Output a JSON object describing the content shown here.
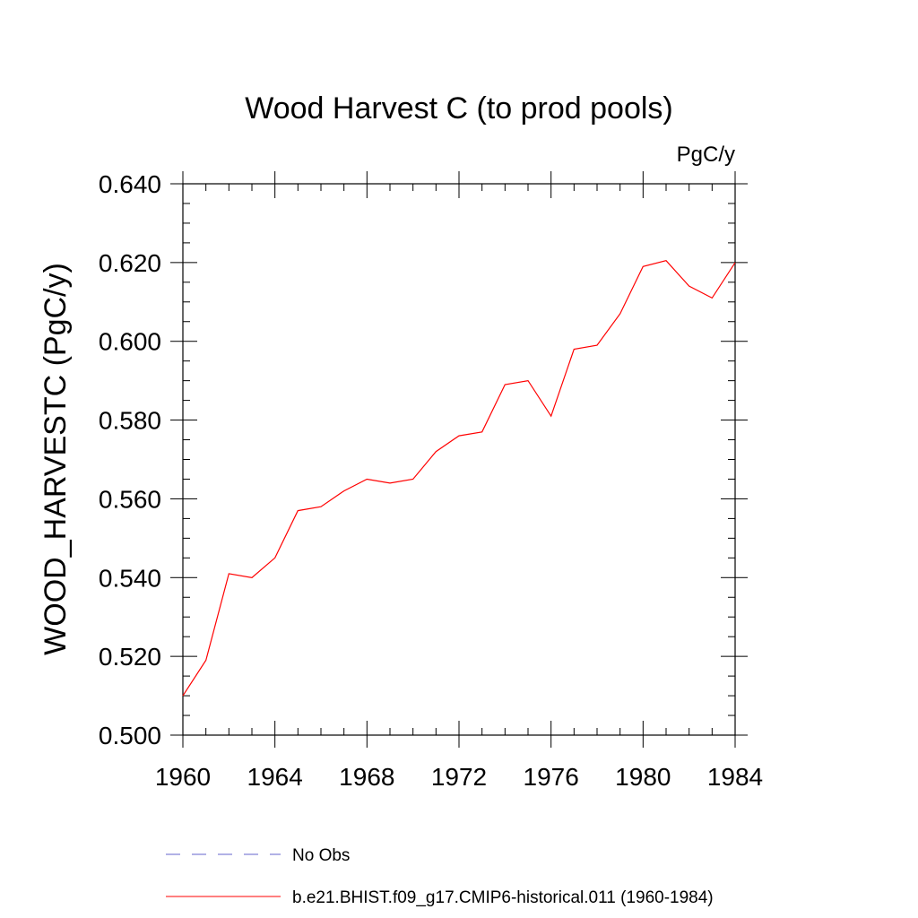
{
  "chart_data": {
    "type": "line",
    "title": "Wood Harvest C (to prod pools)",
    "units_label": "PgC/y",
    "ylabel": "WOOD_HARVESTC  (PgC/y)",
    "xlabel": "",
    "xlim": [
      1960,
      1984
    ],
    "ylim": [
      0.5,
      0.64
    ],
    "x_ticks": [
      1960,
      1964,
      1968,
      1972,
      1976,
      1980,
      1984
    ],
    "x_tick_labels": [
      "1960",
      "1964",
      "1968",
      "1972",
      "1976",
      "1980",
      "1984"
    ],
    "y_ticks": [
      0.5,
      0.52,
      0.54,
      0.56,
      0.58,
      0.6,
      0.62,
      0.64
    ],
    "y_tick_labels": [
      "0.500",
      "0.520",
      "0.540",
      "0.560",
      "0.580",
      "0.600",
      "0.620",
      "0.640"
    ],
    "grid": false,
    "legend_position": "bottom",
    "series": [
      {
        "name": "b.e21.BHIST.f09_g17.CMIP6-historical.011 (1960-1984)",
        "color": "#ff0000",
        "style": "solid",
        "x": [
          1960,
          1961,
          1962,
          1963,
          1964,
          1965,
          1966,
          1967,
          1968,
          1969,
          1970,
          1971,
          1972,
          1973,
          1974,
          1975,
          1976,
          1977,
          1978,
          1979,
          1980,
          1981,
          1982,
          1983,
          1984
        ],
        "values": [
          0.51,
          0.519,
          0.541,
          0.54,
          0.545,
          0.557,
          0.558,
          0.562,
          0.565,
          0.564,
          0.565,
          0.572,
          0.576,
          0.577,
          0.589,
          0.59,
          0.581,
          0.598,
          0.599,
          0.607,
          0.619,
          0.6205,
          0.614,
          0.611,
          0.62
        ]
      }
    ],
    "legend": [
      {
        "label": "No Obs",
        "color": "#6666cc",
        "style": "dashed"
      },
      {
        "label": "b.e21.BHIST.f09_g17.CMIP6-historical.011 (1960-1984)",
        "color": "#ff0000",
        "style": "solid"
      }
    ]
  }
}
